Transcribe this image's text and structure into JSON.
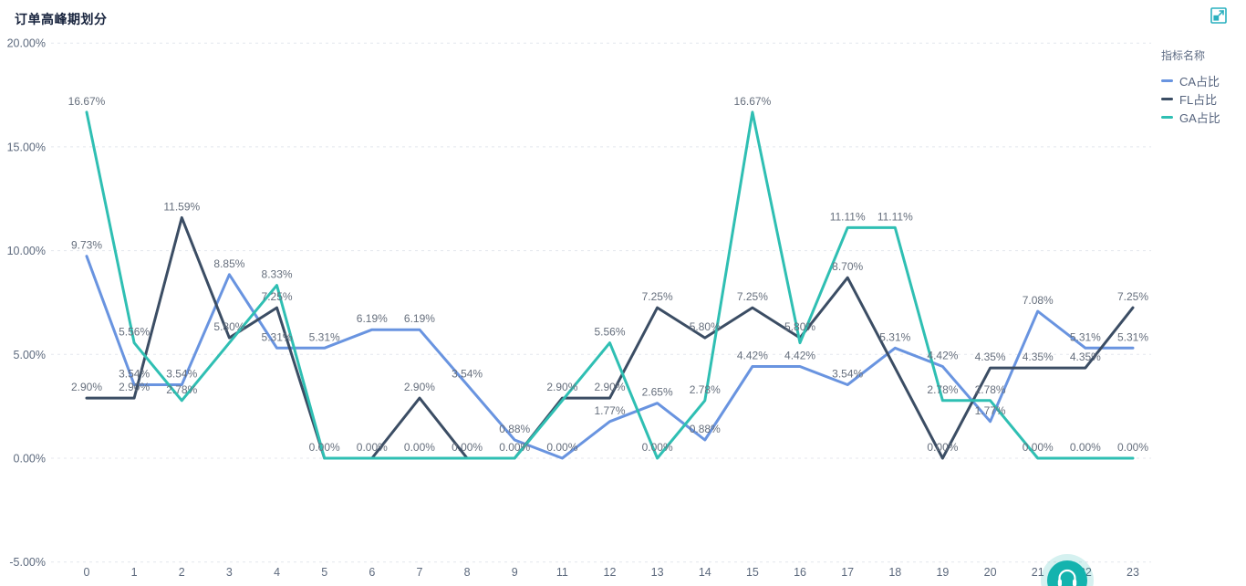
{
  "page": {
    "window": "BI dashboard card"
  },
  "toolbar": {
    "expand_icon_color": "#2ab0bf"
  },
  "legend": {
    "title": "指标名称",
    "items": [
      {
        "label": "CA占比",
        "color": "#6994E0"
      },
      {
        "label": "FL占比",
        "color": "#3B4D64"
      },
      {
        "label": "GA占比",
        "color": "#2FBFB3"
      }
    ]
  },
  "floating_button": {
    "color": "#14b3ae",
    "icon": "customer-service-headset"
  },
  "chart_data": {
    "type": "line",
    "title": "订单高峰期划分",
    "x_categories": [
      "0",
      "1",
      "2",
      "3",
      "4",
      "5",
      "6",
      "7",
      "8",
      "9",
      "11",
      "12",
      "13",
      "14",
      "15",
      "16",
      "17",
      "18",
      "19",
      "20",
      "21",
      "22",
      "23"
    ],
    "y_ticks": [
      {
        "value": 20,
        "label": "20.00%"
      },
      {
        "value": 15,
        "label": "15.00%"
      },
      {
        "value": 10,
        "label": "10.00%"
      },
      {
        "value": 5,
        "label": "5.00%"
      },
      {
        "value": 0,
        "label": "0.00%"
      },
      {
        "value": -5,
        "label": "-5.00%"
      }
    ],
    "ylim": [
      -5,
      20
    ],
    "grid": "horizontal-dashed",
    "grid_color": "#e4e7ed",
    "label_color": "#666f7d",
    "axis_text_color": "#5d6a7e",
    "legend_position": "right",
    "label_format": "{value}%",
    "series": [
      {
        "name": "CA占比",
        "color": "#6994E0",
        "values": [
          9.73,
          3.54,
          3.54,
          8.85,
          5.31,
          5.31,
          6.19,
          6.19,
          3.54,
          0.88,
          0.0,
          1.77,
          2.65,
          0.88,
          4.42,
          4.42,
          3.54,
          5.31,
          4.42,
          1.77,
          7.08,
          5.31,
          5.31
        ],
        "hidden_label_indices": []
      },
      {
        "name": "FL占比",
        "color": "#3B4D64",
        "values": [
          2.9,
          2.9,
          11.59,
          5.8,
          7.25,
          0.0,
          0.0,
          2.9,
          0.0,
          0.0,
          2.9,
          2.9,
          7.25,
          5.8,
          7.25,
          5.8,
          8.7,
          4.35,
          0.0,
          4.35,
          4.35,
          4.35,
          7.25
        ],
        "hidden_label_indices": [
          17
        ]
      },
      {
        "name": "GA占比",
        "color": "#2FBFB3",
        "values": [
          16.67,
          5.56,
          2.78,
          5.56,
          8.33,
          0.0,
          0.0,
          0.0,
          0.0,
          0.0,
          2.78,
          5.56,
          0.0,
          2.78,
          16.67,
          5.56,
          11.11,
          11.11,
          2.78,
          2.78,
          0.0,
          0.0,
          0.0
        ],
        "hidden_label_indices": [
          3,
          5,
          6,
          8,
          9,
          10,
          15
        ]
      }
    ]
  }
}
